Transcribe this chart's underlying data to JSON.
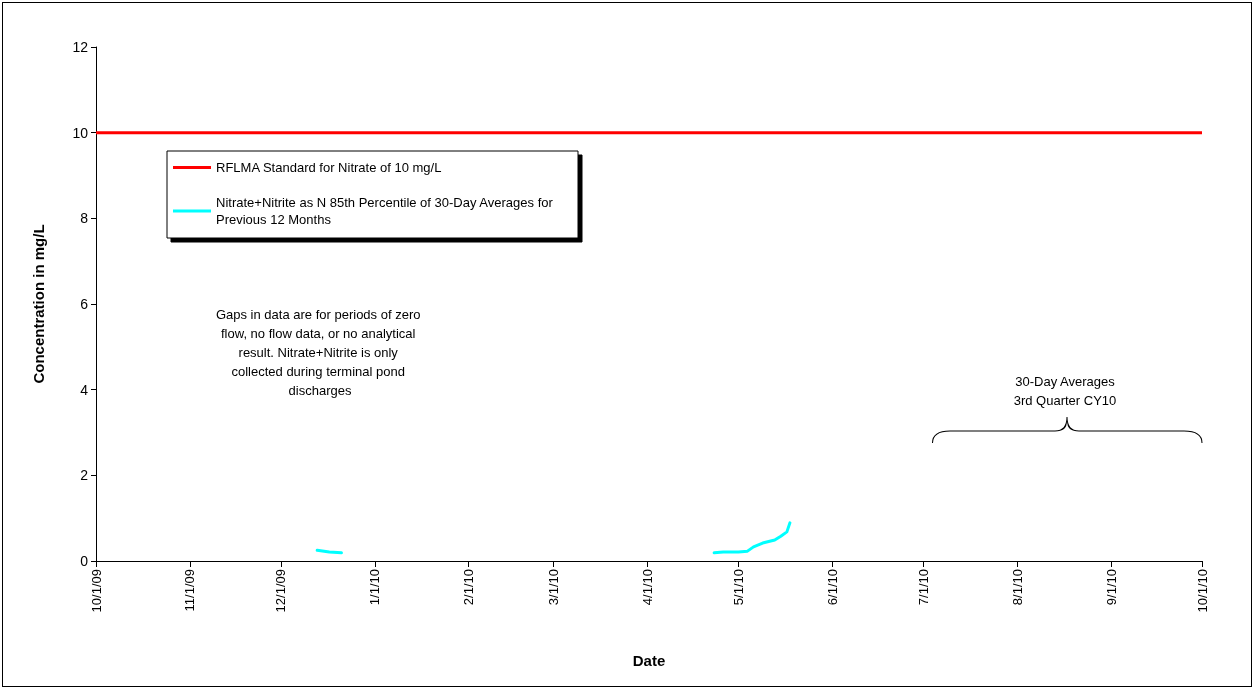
{
  "chart_data": {
    "type": "line",
    "xlabel": "Date",
    "ylabel": "Concentration in mg/L",
    "xlim": [
      "2009-10-01",
      "2010-10-01"
    ],
    "xticks": [
      {
        "value": "2009-10-01",
        "label": "10/1/09"
      },
      {
        "value": "2009-11-01",
        "label": "11/1/09"
      },
      {
        "value": "2009-12-01",
        "label": "12/1/09"
      },
      {
        "value": "2010-01-01",
        "label": "1/1/10"
      },
      {
        "value": "2010-02-01",
        "label": "2/1/10"
      },
      {
        "value": "2010-03-01",
        "label": "3/1/10"
      },
      {
        "value": "2010-04-01",
        "label": "4/1/10"
      },
      {
        "value": "2010-05-01",
        "label": "5/1/10"
      },
      {
        "value": "2010-06-01",
        "label": "6/1/10"
      },
      {
        "value": "2010-07-01",
        "label": "7/1/10"
      },
      {
        "value": "2010-08-01",
        "label": "8/1/10"
      },
      {
        "value": "2010-09-01",
        "label": "9/1/10"
      },
      {
        "value": "2010-10-01",
        "label": "10/1/10"
      }
    ],
    "ylim": [
      0,
      12
    ],
    "yticks": [
      0,
      2,
      4,
      6,
      8,
      10,
      12
    ],
    "series": [
      {
        "name": "Nitrate+Nitrite as N 85th Percentile of 30-Day Averages for Previous 12 Months",
        "color": "#00ffff",
        "x": [
          "2009-12-13",
          "2009-12-17",
          "2009-12-21",
          "2010-02-15",
          "2010-04-23",
          "2010-04-26",
          "2010-05-01",
          "2010-05-04",
          "2010-05-06",
          "2010-05-09",
          "2010-05-13",
          "2010-05-15",
          "2010-05-17",
          "2010-05-18"
        ],
        "values": [
          0.25,
          0.21,
          0.19,
          null,
          0.19,
          0.21,
          0.21,
          0.23,
          0.33,
          0.42,
          0.49,
          0.58,
          0.68,
          0.89
        ]
      }
    ],
    "ref_lines": [
      {
        "axis": "y",
        "value": 10,
        "label": "RFLMA Standard for Nitrate of 10 mg/L",
        "color": "#ff0000"
      }
    ],
    "annotations": [
      "Gaps in data are for periods of zero flow, no flow data, or no analytical result. Nitrate+Nitrite is only collected during terminal pond discharges",
      "30-Day Averages\n3rd Quarter CY10"
    ],
    "legend": "top left",
    "grid": false,
    "marker": "none",
    "line_style": "solid"
  }
}
